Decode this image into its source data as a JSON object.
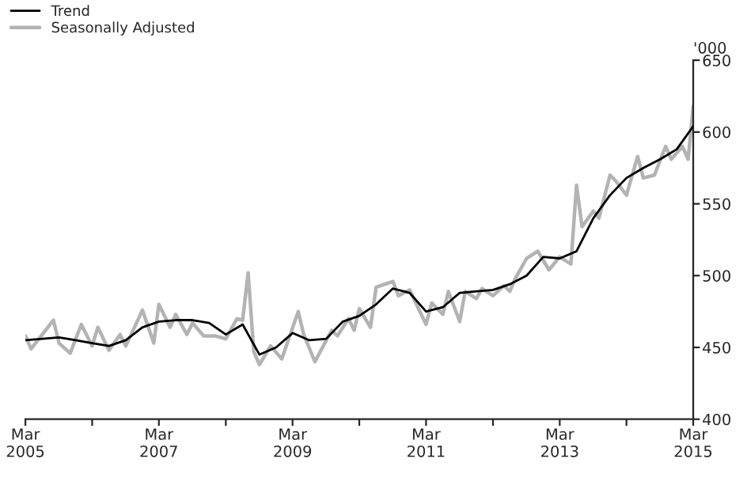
{
  "chart_data": {
    "type": "line",
    "ylabel": "'000",
    "x": [
      "2005-03",
      "2005-06",
      "2005-09",
      "2005-12",
      "2006-03",
      "2006-06",
      "2006-09",
      "2006-12",
      "2007-03",
      "2007-06",
      "2007-09",
      "2007-12",
      "2008-03",
      "2008-06",
      "2008-09",
      "2008-12",
      "2009-03",
      "2009-06",
      "2009-09",
      "2009-12",
      "2010-03",
      "2010-06",
      "2010-09",
      "2010-12",
      "2011-03",
      "2011-06",
      "2011-09",
      "2011-12",
      "2012-03",
      "2012-06",
      "2012-09",
      "2012-12",
      "2013-03",
      "2013-06",
      "2013-09",
      "2013-12",
      "2014-03",
      "2014-06",
      "2014-09",
      "2014-12",
      "2015-03"
    ],
    "series": [
      {
        "name": "Trend",
        "color": "#000000",
        "values": [
          455,
          456,
          457,
          455,
          453,
          451,
          455,
          464,
          468,
          469,
          469,
          467,
          459,
          466,
          445,
          450,
          460,
          455,
          456,
          468,
          472,
          480,
          491,
          488,
          475,
          478,
          488,
          489,
          490,
          494,
          500,
          513,
          512,
          517,
          540,
          556,
          568,
          575,
          581,
          588,
          604
        ]
      },
      {
        "name": "Seasonally Adjusted",
        "color": "#b3b3b3",
        "x": [
          "2005-03",
          "2005-04",
          "2005-08",
          "2005-09",
          "2005-11",
          "2006-01",
          "2006-03",
          "2006-04",
          "2006-06",
          "2006-08",
          "2006-09",
          "2006-12",
          "2007-02",
          "2007-03",
          "2007-05",
          "2007-06",
          "2007-08",
          "2007-09",
          "2007-11",
          "2008-01",
          "2008-03",
          "2008-05",
          "2008-06",
          "2008-07",
          "2008-08",
          "2008-09",
          "2008-11",
          "2009-01",
          "2009-04",
          "2009-05",
          "2009-07",
          "2009-10",
          "2009-11",
          "2010-01",
          "2010-02",
          "2010-03",
          "2010-05",
          "2010-06",
          "2010-09",
          "2010-10",
          "2010-12",
          "2011-03",
          "2011-04",
          "2011-06",
          "2011-07",
          "2011-09",
          "2011-10",
          "2011-12",
          "2012-01",
          "2012-03",
          "2012-05",
          "2012-06",
          "2012-07",
          "2012-09",
          "2012-11",
          "2013-01",
          "2013-03",
          "2013-05",
          "2013-06",
          "2013-07",
          "2013-09",
          "2013-10",
          "2013-12",
          "2014-01",
          "2014-03",
          "2014-05",
          "2014-06",
          "2014-08",
          "2014-10",
          "2014-11",
          "2015-01",
          "2015-02",
          "2015-03"
        ],
        "values": [
          458,
          449,
          469,
          453,
          446,
          466,
          451,
          464,
          448,
          459,
          451,
          476,
          453,
          480,
          464,
          473,
          459,
          467,
          458,
          458,
          456,
          470,
          469,
          502,
          447,
          438,
          451,
          442,
          475,
          459,
          440,
          462,
          458,
          470,
          462,
          477,
          464,
          492,
          496,
          486,
          490,
          466,
          481,
          473,
          489,
          468,
          489,
          484,
          491,
          486,
          493,
          489,
          498,
          512,
          517,
          504,
          513,
          508,
          563,
          534,
          545,
          540,
          570,
          566,
          556,
          583,
          568,
          570,
          590,
          581,
          590,
          581,
          618
        ]
      }
    ],
    "xlim": [
      "2005-03",
      "2015-03"
    ],
    "xticks": [
      {
        "value": "2005-03",
        "label": "Mar\n2005"
      },
      {
        "value": "2006-03",
        "label": null
      },
      {
        "value": "2007-03",
        "label": "Mar\n2007"
      },
      {
        "value": "2008-03",
        "label": null
      },
      {
        "value": "2009-03",
        "label": "Mar\n2009"
      },
      {
        "value": "2010-03",
        "label": null
      },
      {
        "value": "2011-03",
        "label": "Mar\n2011"
      },
      {
        "value": "2012-03",
        "label": null
      },
      {
        "value": "2013-03",
        "label": "Mar\n2013"
      },
      {
        "value": "2014-03",
        "label": null
      },
      {
        "value": "2015-03",
        "label": "Mar\n2015"
      }
    ],
    "ylim": [
      400,
      650
    ],
    "yticks": [
      400,
      450,
      500,
      550,
      600,
      650
    ],
    "grid": false,
    "legend": "top left",
    "marker": "none",
    "line_style": "solid"
  }
}
